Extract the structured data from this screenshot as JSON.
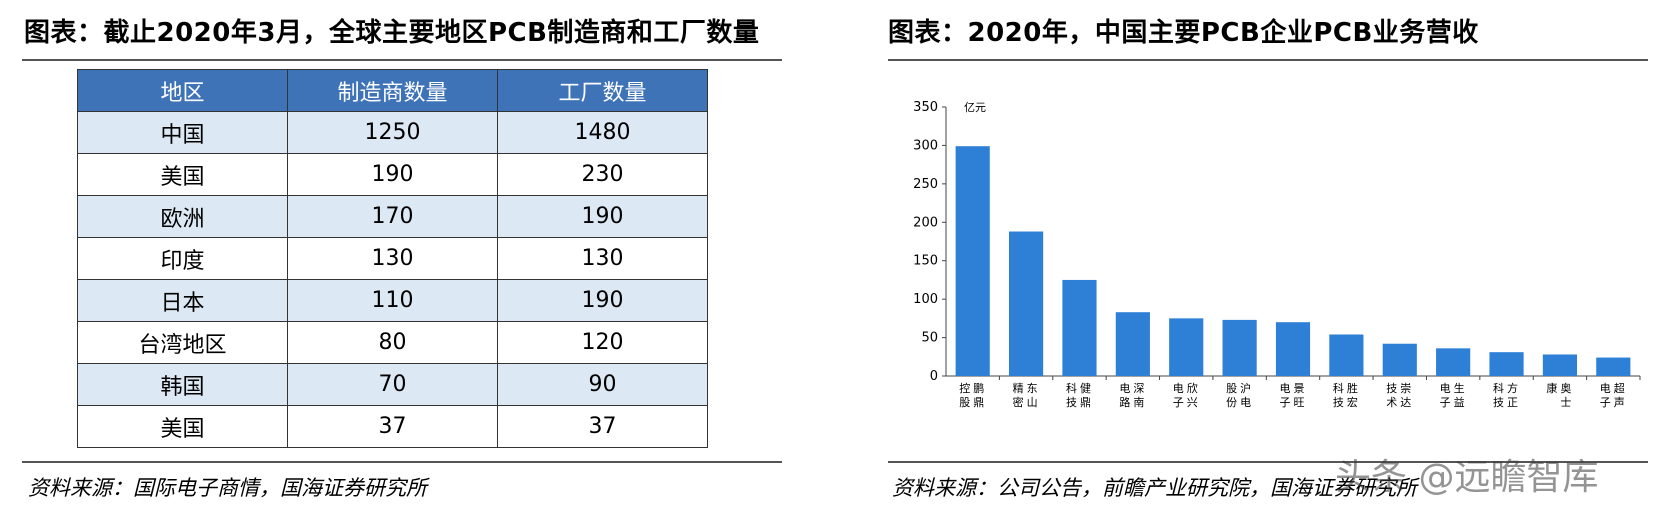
{
  "left": {
    "title": "图表：截止2020年3月，全球主要地区PCB制造商和工厂数量",
    "table": {
      "headers": [
        "地区",
        "制造商数量",
        "工厂数量"
      ],
      "rows": [
        [
          "中国",
          "1250",
          "1480"
        ],
        [
          "美国",
          "190",
          "230"
        ],
        [
          "欧洲",
          "170",
          "190"
        ],
        [
          "印度",
          "130",
          "130"
        ],
        [
          "日本",
          "110",
          "190"
        ],
        [
          "台湾地区",
          "80",
          "120"
        ],
        [
          "韩国",
          "70",
          "90"
        ],
        [
          "美国",
          "37",
          "37"
        ]
      ],
      "header_color": "#3f73b8",
      "stripe_color": "#dce8f4"
    },
    "source": "资料来源：国际电子商情，国海证券研究所"
  },
  "right": {
    "title": "图表：2020年，中国主要PCB企业PCB业务营收",
    "source": "资料来源：公司公告，前瞻产业研究院，国海证券研究所"
  },
  "chart_data": {
    "type": "bar",
    "title": "",
    "xlabel": "",
    "ylabel": "亿元",
    "ylim": [
      0,
      350
    ],
    "yticks": [
      0,
      50,
      100,
      150,
      200,
      250,
      300,
      350
    ],
    "grid": false,
    "bar_color": "#2e7fd6",
    "categories": [
      [
        "鹏鼎",
        "控股"
      ],
      [
        "东山",
        "精密"
      ],
      [
        "健鼎",
        "科技"
      ],
      [
        "深南",
        "电路"
      ],
      [
        "欣兴",
        "电子"
      ],
      [
        "沪电",
        "股份"
      ],
      [
        "景旺",
        "电子"
      ],
      [
        "胜宏",
        "科技"
      ],
      [
        "崇达",
        "技术"
      ],
      [
        "生益",
        "电子"
      ],
      [
        "方正",
        "科技"
      ],
      [
        "奥士",
        "康"
      ],
      [
        "超声",
        "电子"
      ]
    ],
    "values": [
      299,
      188,
      125,
      83,
      75,
      73,
      70,
      54,
      42,
      36,
      31,
      28,
      24
    ]
  },
  "watermark": "头条 @远瞻智库"
}
